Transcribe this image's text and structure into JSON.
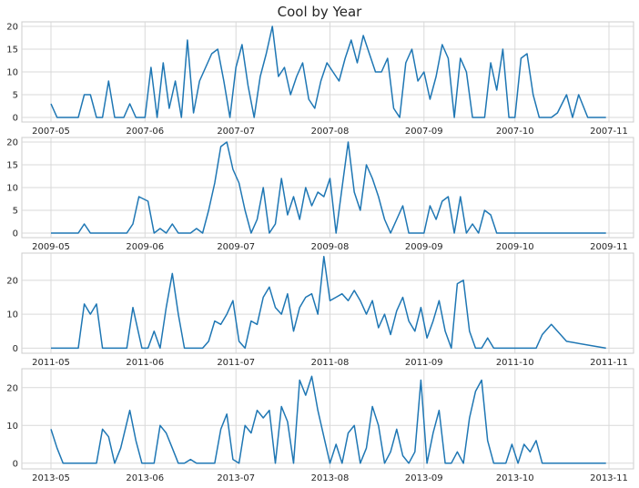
{
  "title": "Cool by Year",
  "colors": {
    "line": "#1f77b4",
    "grid": "#d9d9d9",
    "frame": "#cccccc",
    "tick_text": "#262626",
    "background": "#ffffff"
  },
  "chart_data": [
    {
      "type": "line",
      "year": 2007,
      "x_range": [
        "2007-05-01",
        "2007-11-01"
      ],
      "x_ticks": [
        "2007-05",
        "2007-06",
        "2007-07",
        "2007-08",
        "2007-09",
        "2007-10",
        "2007-11"
      ],
      "ylim": [
        -1,
        21
      ],
      "y_ticks": [
        0,
        5,
        10,
        15,
        20
      ],
      "grid": true,
      "x": [
        "2007-05-01",
        "2007-05-03",
        "2007-05-07",
        "2007-05-10",
        "2007-05-12",
        "2007-05-14",
        "2007-05-16",
        "2007-05-18",
        "2007-05-20",
        "2007-05-22",
        "2007-05-25",
        "2007-05-27",
        "2007-05-29",
        "2007-06-01",
        "2007-06-03",
        "2007-06-05",
        "2007-06-07",
        "2007-06-09",
        "2007-06-11",
        "2007-06-13",
        "2007-06-15",
        "2007-06-17",
        "2007-06-19",
        "2007-06-21",
        "2007-06-23",
        "2007-06-25",
        "2007-06-27",
        "2007-06-29",
        "2007-07-01",
        "2007-07-03",
        "2007-07-05",
        "2007-07-07",
        "2007-07-09",
        "2007-07-11",
        "2007-07-13",
        "2007-07-15",
        "2007-07-17",
        "2007-07-19",
        "2007-07-21",
        "2007-07-23",
        "2007-07-25",
        "2007-07-27",
        "2007-07-29",
        "2007-07-31",
        "2007-08-02",
        "2007-08-04",
        "2007-08-06",
        "2007-08-08",
        "2007-08-10",
        "2007-08-12",
        "2007-08-14",
        "2007-08-16",
        "2007-08-18",
        "2007-08-20",
        "2007-08-22",
        "2007-08-24",
        "2007-08-26",
        "2007-08-28",
        "2007-08-30",
        "2007-09-01",
        "2007-09-03",
        "2007-09-05",
        "2007-09-07",
        "2007-09-09",
        "2007-09-11",
        "2007-09-13",
        "2007-09-15",
        "2007-09-17",
        "2007-09-19",
        "2007-09-21",
        "2007-09-23",
        "2007-09-25",
        "2007-09-27",
        "2007-09-29",
        "2007-10-01",
        "2007-10-03",
        "2007-10-05",
        "2007-10-07",
        "2007-10-09",
        "2007-10-11",
        "2007-10-13",
        "2007-10-15",
        "2007-10-18",
        "2007-10-20",
        "2007-10-22",
        "2007-10-25",
        "2007-10-28",
        "2007-10-31"
      ],
      "y": [
        3,
        0,
        0,
        0,
        5,
        5,
        0,
        0,
        8,
        0,
        0,
        3,
        0,
        0,
        11,
        0,
        12,
        2,
        8,
        0,
        17,
        1,
        8,
        11,
        14,
        15,
        8,
        0,
        11,
        16,
        7,
        0,
        9,
        14,
        20,
        9,
        11,
        5,
        9,
        12,
        4,
        2,
        8,
        12,
        10,
        8,
        13,
        17,
        12,
        18,
        14,
        10,
        10,
        13,
        2,
        0,
        12,
        15,
        8,
        10,
        4,
        9,
        16,
        13,
        0,
        13,
        10,
        0,
        0,
        0,
        12,
        6,
        15,
        0,
        0,
        13,
        14,
        5,
        0,
        0,
        0,
        1,
        5,
        0,
        5,
        0,
        0,
        0
      ]
    },
    {
      "type": "line",
      "year": 2009,
      "x_range": [
        "2009-05-01",
        "2009-11-01"
      ],
      "x_ticks": [
        "2009-05",
        "2009-06",
        "2009-07",
        "2009-08",
        "2009-09",
        "2009-10",
        "2009-11"
      ],
      "ylim": [
        -1,
        21
      ],
      "y_ticks": [
        0,
        5,
        10,
        15,
        20
      ],
      "grid": true,
      "x": [
        "2009-05-01",
        "2009-05-05",
        "2009-05-10",
        "2009-05-12",
        "2009-05-14",
        "2009-05-17",
        "2009-05-20",
        "2009-05-24",
        "2009-05-26",
        "2009-05-28",
        "2009-05-30",
        "2009-06-02",
        "2009-06-04",
        "2009-06-06",
        "2009-06-08",
        "2009-06-10",
        "2009-06-12",
        "2009-06-14",
        "2009-06-16",
        "2009-06-18",
        "2009-06-20",
        "2009-06-22",
        "2009-06-24",
        "2009-06-26",
        "2009-06-28",
        "2009-06-30",
        "2009-07-02",
        "2009-07-04",
        "2009-07-06",
        "2009-07-08",
        "2009-07-10",
        "2009-07-12",
        "2009-07-14",
        "2009-07-16",
        "2009-07-18",
        "2009-07-20",
        "2009-07-22",
        "2009-07-24",
        "2009-07-26",
        "2009-07-28",
        "2009-07-30",
        "2009-08-01",
        "2009-08-03",
        "2009-08-05",
        "2009-08-07",
        "2009-08-09",
        "2009-08-11",
        "2009-08-13",
        "2009-08-15",
        "2009-08-17",
        "2009-08-19",
        "2009-08-21",
        "2009-08-23",
        "2009-08-25",
        "2009-08-27",
        "2009-08-29",
        "2009-09-01",
        "2009-09-03",
        "2009-09-05",
        "2009-09-07",
        "2009-09-09",
        "2009-09-11",
        "2009-09-13",
        "2009-09-15",
        "2009-09-17",
        "2009-09-19",
        "2009-09-21",
        "2009-09-23",
        "2009-09-25",
        "2009-09-27",
        "2009-09-29",
        "2009-10-01",
        "2009-10-10",
        "2009-10-20",
        "2009-10-31"
      ],
      "y": [
        0,
        0,
        0,
        2,
        0,
        0,
        0,
        0,
        0,
        2,
        8,
        7,
        0,
        1,
        0,
        2,
        0,
        0,
        0,
        1,
        0,
        5,
        11,
        19,
        20,
        14,
        11,
        5,
        0,
        3,
        10,
        0,
        2,
        12,
        4,
        8,
        3,
        10,
        6,
        9,
        8,
        12,
        0,
        10,
        20,
        9,
        5,
        15,
        12,
        8,
        3,
        0,
        3,
        6,
        0,
        0,
        0,
        6,
        3,
        7,
        8,
        0,
        8,
        0,
        2,
        0,
        5,
        4,
        0,
        0,
        0,
        0,
        0,
        0,
        0
      ]
    },
    {
      "type": "line",
      "year": 2011,
      "x_range": [
        "2011-05-01",
        "2011-11-01"
      ],
      "x_ticks": [
        "2011-05",
        "2011-06",
        "2011-07",
        "2011-08",
        "2011-09",
        "2011-10",
        "2011-11"
      ],
      "ylim": [
        -1.5,
        28
      ],
      "y_ticks": [
        0,
        10,
        20
      ],
      "grid": true,
      "x": [
        "2011-05-01",
        "2011-05-05",
        "2011-05-10",
        "2011-05-12",
        "2011-05-14",
        "2011-05-16",
        "2011-05-18",
        "2011-05-22",
        "2011-05-26",
        "2011-05-28",
        "2011-05-31",
        "2011-06-02",
        "2011-06-04",
        "2011-06-06",
        "2011-06-08",
        "2011-06-10",
        "2011-06-12",
        "2011-06-14",
        "2011-06-16",
        "2011-06-18",
        "2011-06-20",
        "2011-06-22",
        "2011-06-24",
        "2011-06-26",
        "2011-06-28",
        "2011-06-30",
        "2011-07-02",
        "2011-07-04",
        "2011-07-06",
        "2011-07-08",
        "2011-07-10",
        "2011-07-12",
        "2011-07-14",
        "2011-07-16",
        "2011-07-18",
        "2011-07-20",
        "2011-07-22",
        "2011-07-24",
        "2011-07-26",
        "2011-07-28",
        "2011-07-30",
        "2011-08-01",
        "2011-08-03",
        "2011-08-05",
        "2011-08-07",
        "2011-08-09",
        "2011-08-11",
        "2011-08-13",
        "2011-08-15",
        "2011-08-17",
        "2011-08-19",
        "2011-08-21",
        "2011-08-23",
        "2011-08-25",
        "2011-08-27",
        "2011-08-29",
        "2011-08-31",
        "2011-09-02",
        "2011-09-04",
        "2011-09-06",
        "2011-09-08",
        "2011-09-10",
        "2011-09-12",
        "2011-09-14",
        "2011-09-16",
        "2011-09-18",
        "2011-09-20",
        "2011-09-22",
        "2011-09-24",
        "2011-09-26",
        "2011-09-28",
        "2011-09-30",
        "2011-10-02",
        "2011-10-04",
        "2011-10-06",
        "2011-10-08",
        "2011-10-10",
        "2011-10-13",
        "2011-10-18",
        "2011-10-31"
      ],
      "y": [
        0,
        0,
        0,
        13,
        10,
        13,
        0,
        0,
        0,
        12,
        0,
        0,
        5,
        0,
        12,
        22,
        10,
        0,
        0,
        0,
        0,
        2,
        8,
        7,
        10,
        14,
        2,
        0,
        8,
        7,
        15,
        18,
        12,
        10,
        16,
        5,
        12,
        15,
        16,
        10,
        27,
        14,
        15,
        16,
        14,
        17,
        14,
        10,
        14,
        6,
        10,
        4,
        11,
        15,
        8,
        5,
        12,
        3,
        8,
        14,
        5,
        0,
        19,
        20,
        5,
        0,
        0,
        3,
        0,
        0,
        0,
        0,
        0,
        0,
        0,
        0,
        4,
        7,
        2,
        0
      ]
    },
    {
      "type": "line",
      "year": 2013,
      "x_range": [
        "2013-05-01",
        "2013-11-01"
      ],
      "x_ticks": [
        "2013-05",
        "2013-06",
        "2013-07",
        "2013-08",
        "2013-09",
        "2013-10",
        "2013-11"
      ],
      "ylim": [
        -1.5,
        25
      ],
      "y_ticks": [
        0,
        10,
        20
      ],
      "grid": true,
      "x": [
        "2013-05-01",
        "2013-05-03",
        "2013-05-05",
        "2013-05-08",
        "2013-05-12",
        "2013-05-16",
        "2013-05-18",
        "2013-05-20",
        "2013-05-22",
        "2013-05-24",
        "2013-05-27",
        "2013-05-29",
        "2013-05-31",
        "2013-06-02",
        "2013-06-04",
        "2013-06-06",
        "2013-06-08",
        "2013-06-10",
        "2013-06-12",
        "2013-06-14",
        "2013-06-16",
        "2013-06-18",
        "2013-06-20",
        "2013-06-22",
        "2013-06-24",
        "2013-06-26",
        "2013-06-28",
        "2013-06-30",
        "2013-07-02",
        "2013-07-04",
        "2013-07-06",
        "2013-07-08",
        "2013-07-10",
        "2013-07-12",
        "2013-07-14",
        "2013-07-16",
        "2013-07-18",
        "2013-07-20",
        "2013-07-22",
        "2013-07-24",
        "2013-07-26",
        "2013-07-28",
        "2013-07-30",
        "2013-08-01",
        "2013-08-03",
        "2013-08-05",
        "2013-08-07",
        "2013-08-09",
        "2013-08-11",
        "2013-08-13",
        "2013-08-15",
        "2013-08-17",
        "2013-08-19",
        "2013-08-21",
        "2013-08-23",
        "2013-08-25",
        "2013-08-27",
        "2013-08-29",
        "2013-08-31",
        "2013-09-02",
        "2013-09-04",
        "2013-09-06",
        "2013-09-08",
        "2013-09-10",
        "2013-09-12",
        "2013-09-14",
        "2013-09-16",
        "2013-09-18",
        "2013-09-20",
        "2013-09-22",
        "2013-09-24",
        "2013-09-26",
        "2013-09-28",
        "2013-09-30",
        "2013-10-02",
        "2013-10-04",
        "2013-10-06",
        "2013-10-08",
        "2013-10-10",
        "2013-10-12",
        "2013-10-14",
        "2013-10-18",
        "2013-10-24",
        "2013-10-31"
      ],
      "y": [
        9,
        4,
        0,
        0,
        0,
        0,
        9,
        7,
        0,
        4,
        14,
        6,
        0,
        0,
        0,
        10,
        8,
        4,
        0,
        0,
        1,
        0,
        0,
        0,
        0,
        9,
        13,
        1,
        0,
        10,
        8,
        14,
        12,
        14,
        0,
        15,
        11,
        0,
        22,
        18,
        23,
        14,
        7,
        0,
        5,
        0,
        8,
        10,
        0,
        4,
        15,
        10,
        0,
        3,
        9,
        2,
        0,
        3,
        22,
        0,
        8,
        14,
        0,
        0,
        3,
        0,
        12,
        19,
        22,
        6,
        0,
        0,
        0,
        5,
        0,
        5,
        3,
        6,
        0,
        0,
        0,
        0,
        0,
        0
      ]
    }
  ]
}
